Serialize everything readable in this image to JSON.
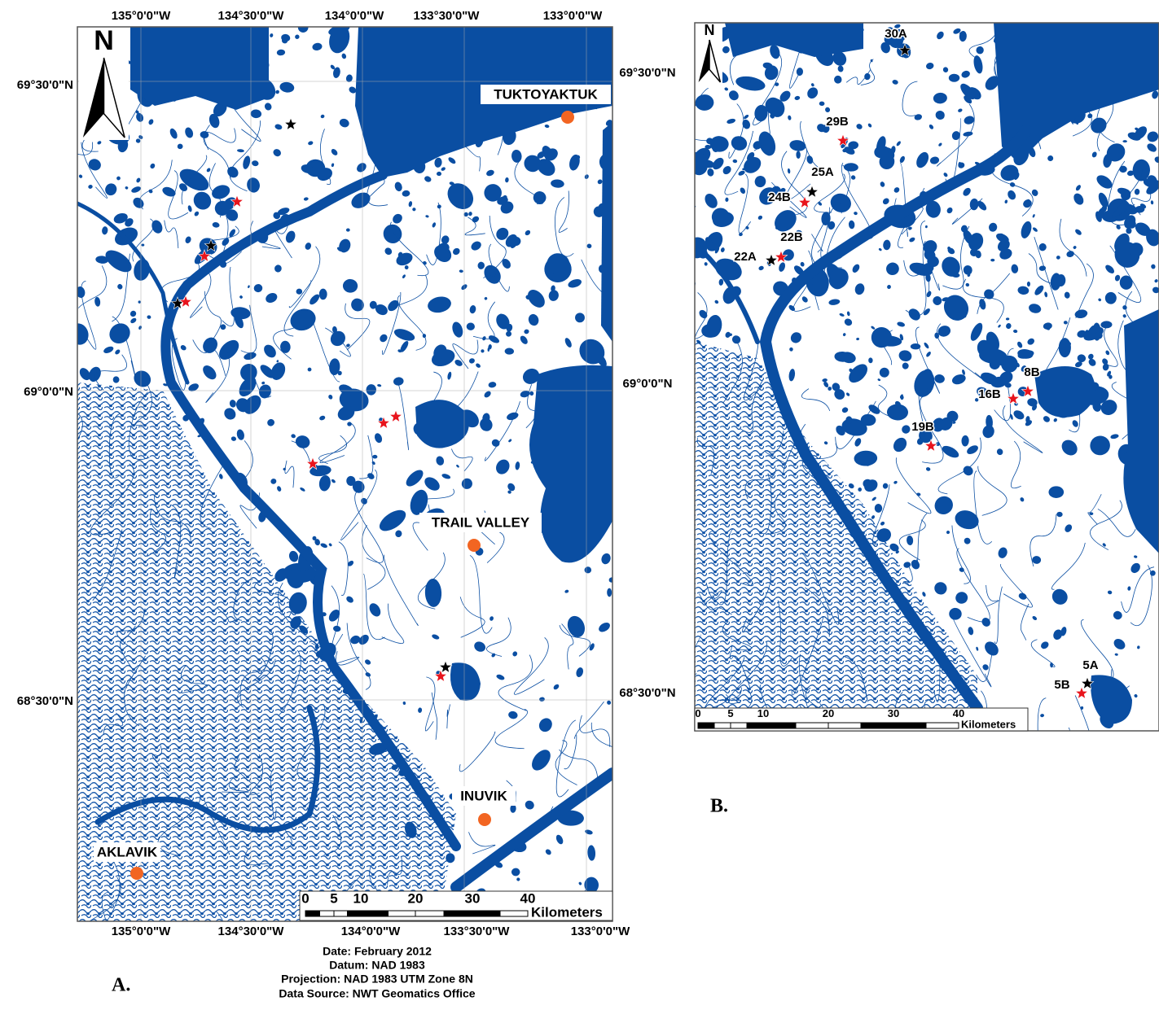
{
  "panel_a": {
    "label": "A.",
    "north": "N",
    "top_lon_labels": [
      "135°0'0\"W",
      "134°30'0\"W",
      "134°0'0\"W",
      "133°30'0\"W",
      "133°0'0\"W"
    ],
    "bottom_lon_labels": [
      "135°0'0\"W",
      "134°30'0\"W",
      "134°0'0\"W",
      "133°30'0\"W",
      "133°0'0\"W"
    ],
    "left_lat_labels": [
      "69°30'0\"N",
      "69°0'0\"N",
      "68°30'0\"N"
    ],
    "right_lat_labels": [
      "69°30'0\"N",
      "69°0'0\"N",
      "68°30'0\"N"
    ],
    "places": [
      "TUKTOYAKTUK",
      "TRAIL VALLEY",
      "INUVIK",
      "AKLAVIK"
    ],
    "scale": {
      "ticks": [
        0,
        5,
        10,
        20,
        30,
        40
      ],
      "unit": "Kilometers"
    },
    "metadata": [
      "Date:  February 2012",
      "Datum:  NAD 1983",
      "Projection:  NAD 1983 UTM Zone 8N",
      "Data Source:  NWT Geomatics Office"
    ]
  },
  "panel_b": {
    "label": "B.",
    "north": "N",
    "sites": [
      "30A",
      "29B",
      "25A",
      "24B",
      "22B",
      "22A",
      "8B",
      "16B",
      "19B",
      "5A",
      "5B"
    ],
    "scale": {
      "ticks": [
        0,
        5,
        10,
        20,
        30,
        40
      ],
      "unit": "Kilometers"
    }
  }
}
